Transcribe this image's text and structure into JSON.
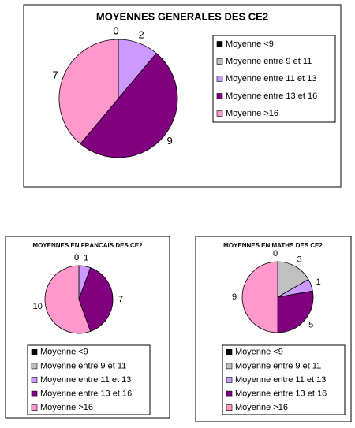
{
  "chart_data": [
    {
      "type": "pie",
      "title": "MOYENNES GENERALES DES CE2",
      "categories": [
        "Moyenne <9",
        "Moyenne entre 9 et 11",
        "Moyenne entre 11 et 13",
        "Moyenne entre 13 et 16",
        "Moyenne >16"
      ],
      "values": [
        0,
        0,
        2,
        9,
        7
      ],
      "colors": [
        "#000000",
        "#c0c0c0",
        "#cc99ff",
        "#800080",
        "#ff99cc"
      ]
    },
    {
      "type": "pie",
      "title": "MOYENNES EN FRANCAIS DES CE2",
      "categories": [
        "Moyenne <9",
        "Moyenne entre 9 et 11",
        "Moyenne entre 11 et 13",
        "Moyenne entre 13 et 16",
        "Moyenne >16"
      ],
      "values": [
        0,
        0,
        1,
        7,
        10
      ],
      "colors": [
        "#000000",
        "#c0c0c0",
        "#cc99ff",
        "#800080",
        "#ff99cc"
      ]
    },
    {
      "type": "pie",
      "title": "MOYENNES EN MATHS DES CE2",
      "categories": [
        "Moyenne <9",
        "Moyenne entre 9 et 11",
        "Moyenne entre 11 et 13",
        "Moyenne entre 13 et 16",
        "Moyenne >16"
      ],
      "values": [
        0,
        3,
        1,
        5,
        9
      ],
      "colors": [
        "#000000",
        "#c0c0c0",
        "#cc99ff",
        "#800080",
        "#ff99cc"
      ]
    }
  ]
}
